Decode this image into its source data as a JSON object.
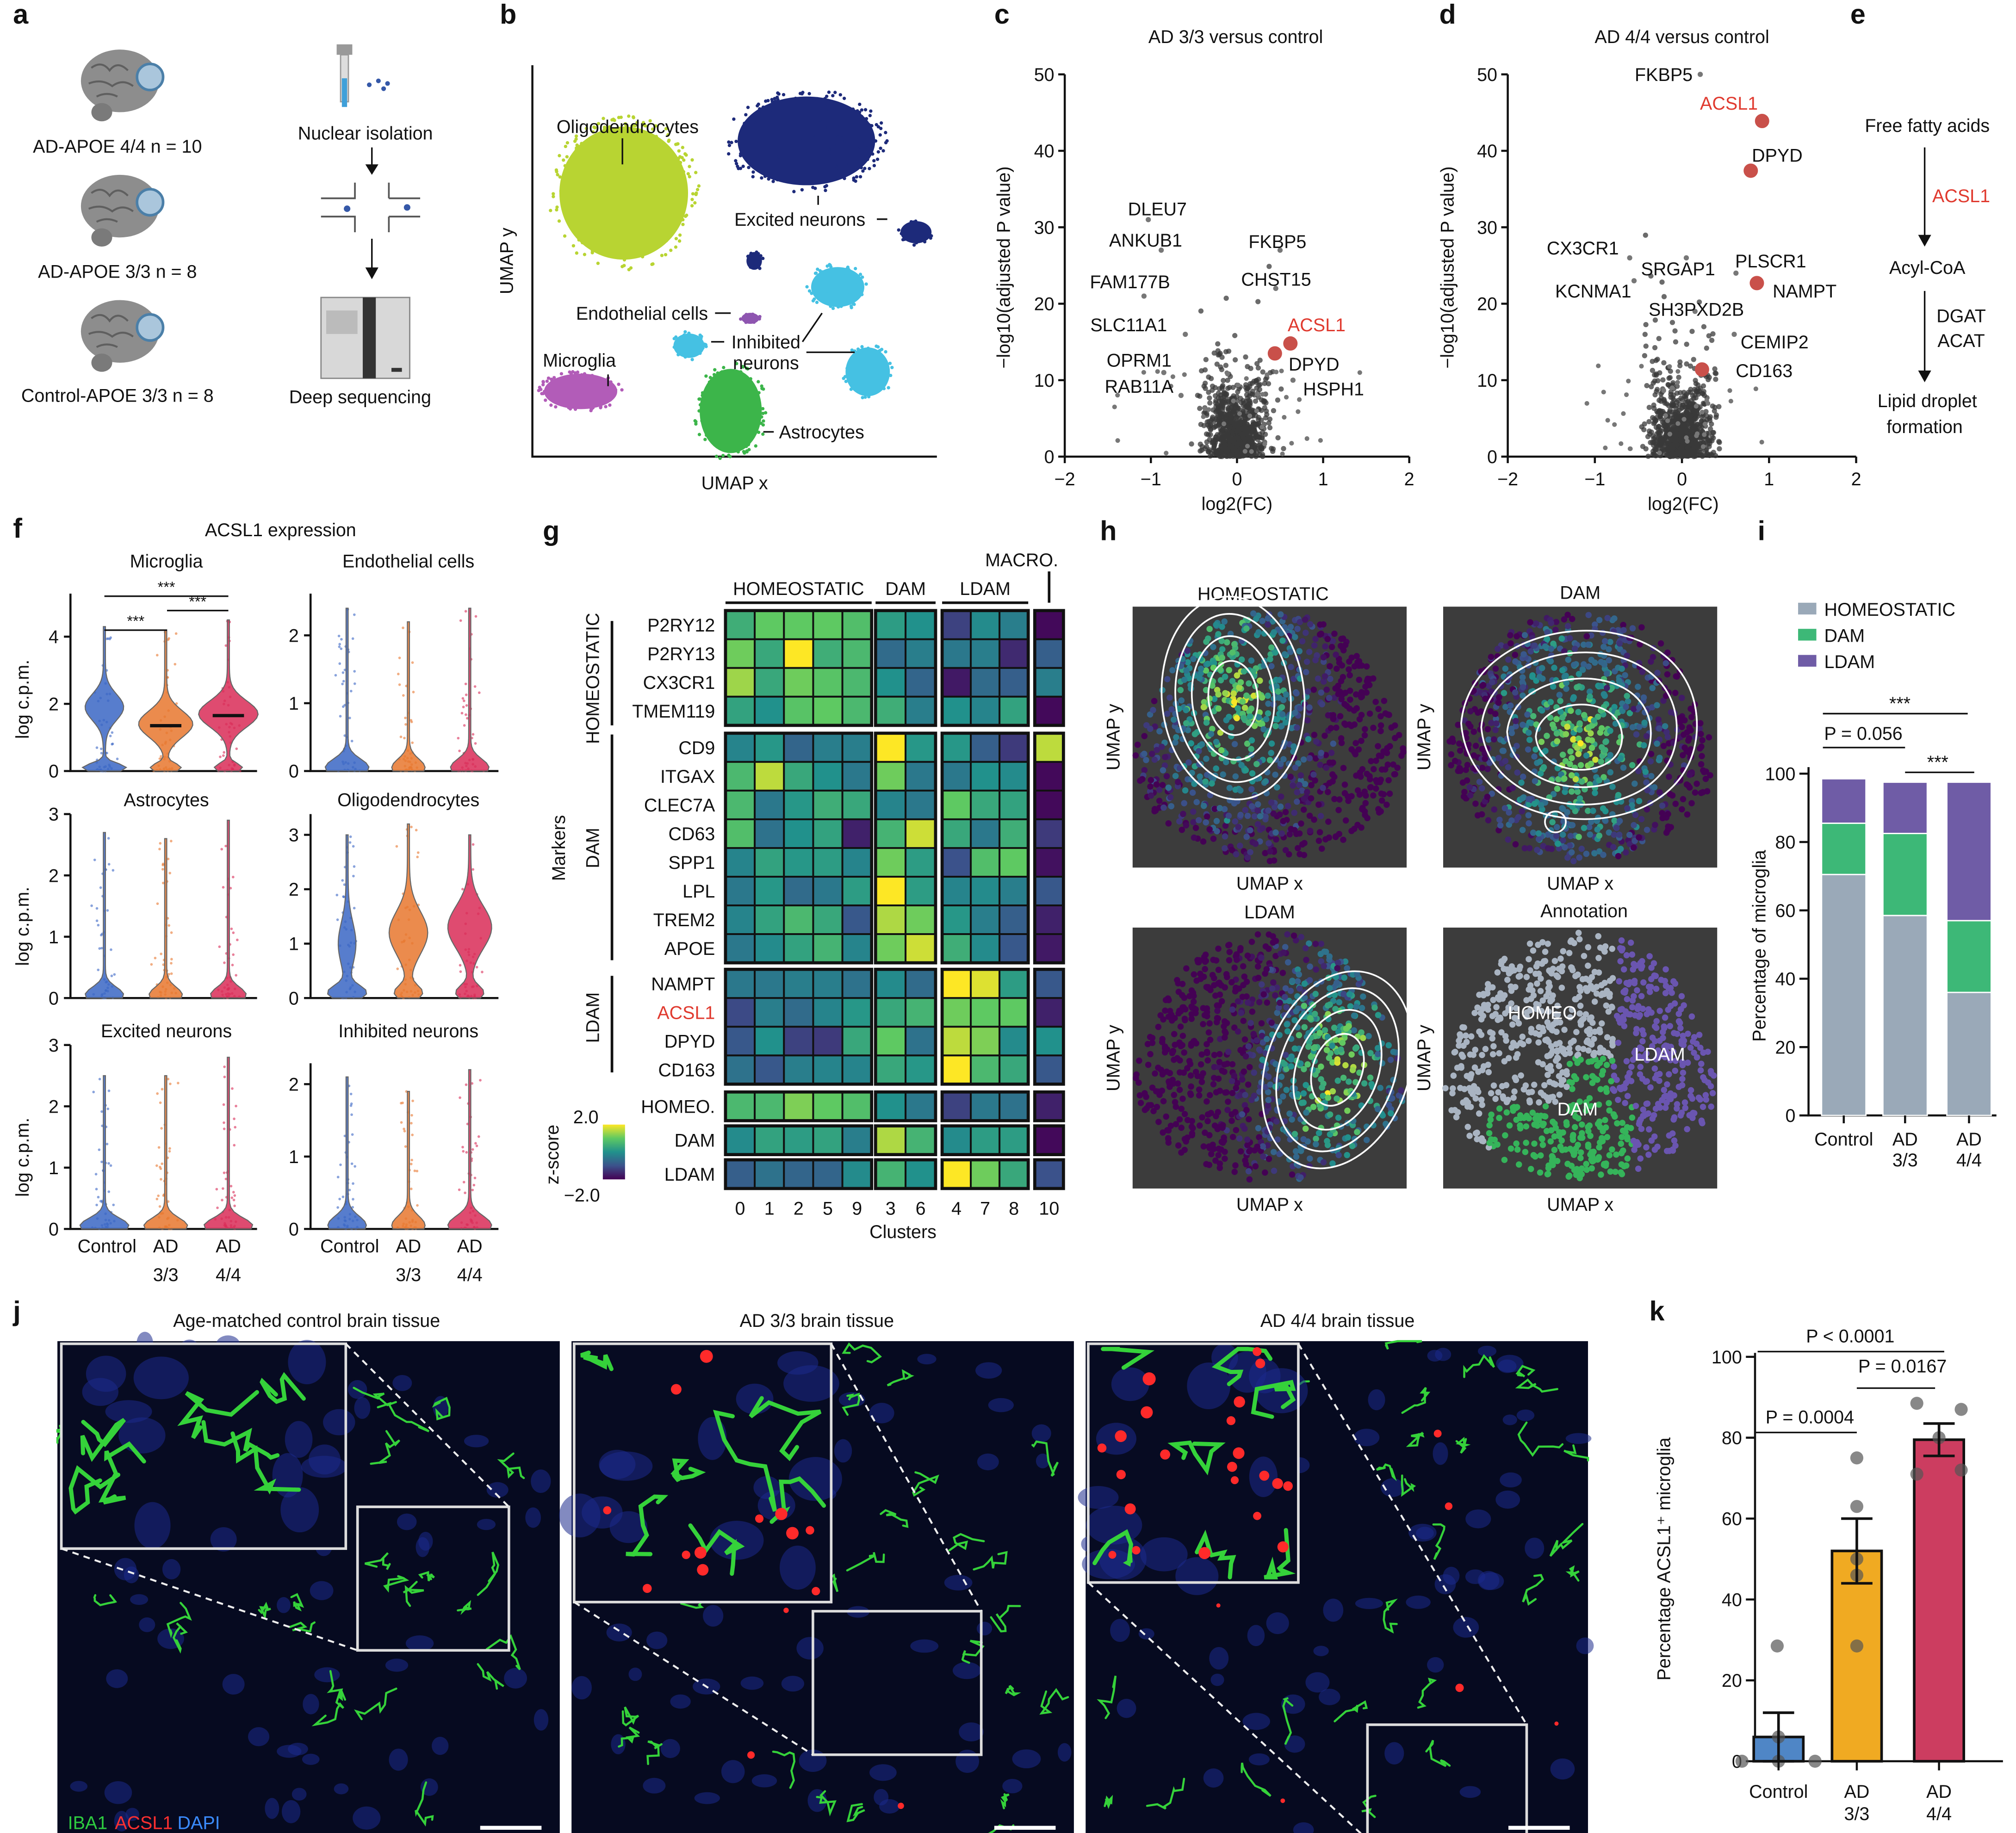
{
  "panel_letters": {
    "a": "a",
    "b": "b",
    "c": "c",
    "d": "d",
    "e": "e",
    "f": "f",
    "g": "g",
    "h": "h",
    "i": "i",
    "j": "j",
    "k": "k"
  },
  "panel_a": {
    "cohorts": [
      "AD-APOE 4/4 n = 10",
      "AD-APOE 3/3 n = 8",
      "Control-APOE 3/3 n = 8"
    ],
    "steps": [
      "Nuclear isolation",
      "Deep sequencing"
    ]
  },
  "panel_b": {
    "xlabel": "UMAP x",
    "ylabel": "UMAP y",
    "clusters": [
      {
        "name": "Oligodendrocytes",
        "color": "#b8d432"
      },
      {
        "name": "Excited neurons",
        "color": "#1d2a7a"
      },
      {
        "name": "Endothelial cells",
        "color": "#8e55b0"
      },
      {
        "name": "Inhibited",
        "name2": "neurons",
        "color": "#45c1e3"
      },
      {
        "name": "Microglia",
        "color": "#b25cb8"
      },
      {
        "name": "Astrocytes",
        "color": "#3cb54a"
      }
    ]
  },
  "panel_e": {
    "start": "Free fatty acids",
    "enzyme1": "ACSL1",
    "middle": "Acyl-CoA",
    "enzyme2a": "DGAT",
    "enzyme2b": "ACAT",
    "end1": "Lipid droplet",
    "end2": "formation",
    "highlight_color": "#e03a2f"
  },
  "panel_h": {
    "panels": [
      {
        "title": "HOMEOSTATIC",
        "xlabel": "UMAP x",
        "ylabel": "UMAP y"
      },
      {
        "title": "DAM",
        "xlabel": "UMAP x",
        "ylabel": "UMAP y"
      },
      {
        "title": "LDAM",
        "xlabel": "UMAP x",
        "ylabel": "UMAP y"
      },
      {
        "title": "Annotation",
        "xlabel": "UMAP x",
        "ylabel": "UMAP y"
      }
    ],
    "annotation_labels": [
      "HOMEO",
      "LDAM",
      "DAM"
    ],
    "annotation_colors": {
      "HOMEO": "#a9b4c2",
      "DAM": "#35b45a",
      "LDAM": "#6a55b0"
    },
    "background": "#3c3c3c"
  },
  "panel_j": {
    "titles": [
      "Age-matched control brain tissue",
      "AD 3/3 brain tissue",
      "AD 4/4 brain tissue"
    ],
    "stain_legend": [
      {
        "text": "IBA1",
        "color": "#2ecc40"
      },
      {
        "text": "ACSL1",
        "color": "#ff3030"
      },
      {
        "text": "DAPI",
        "color": "#3b8cff"
      }
    ]
  },
  "chart_data": [
    {
      "id": "c",
      "type": "scatter",
      "title": "AD 3/3 versus control",
      "xlabel": "log2(FC)",
      "ylabel": "−log10(adjusted P value)",
      "xlim": [
        -2,
        2
      ],
      "ylim": [
        0,
        50
      ],
      "xticks": [
        "−2",
        "−1",
        "0",
        "1",
        "2"
      ],
      "yticks": [
        "0",
        "10",
        "20",
        "30",
        "40",
        "50"
      ],
      "labeled_points": [
        {
          "gene": "DLEU7",
          "x": -1.03,
          "y": 31,
          "highlight": false
        },
        {
          "gene": "ANKUB1",
          "x": -0.88,
          "y": 27,
          "highlight": false
        },
        {
          "gene": "FAM177B",
          "x": -1.08,
          "y": 21,
          "highlight": false
        },
        {
          "gene": "SLC11A1",
          "x": -0.6,
          "y": 16,
          "highlight": false
        },
        {
          "gene": "OPRM1",
          "x": -0.85,
          "y": 11,
          "highlight": false
        },
        {
          "gene": "RAB11A",
          "x": -0.65,
          "y": 8,
          "highlight": false
        },
        {
          "gene": "FKBP5",
          "x": 0.5,
          "y": 27,
          "highlight": false
        },
        {
          "gene": "CHST15",
          "x": 0.45,
          "y": 22,
          "highlight": false
        },
        {
          "gene": "ACSL1",
          "x": 0.62,
          "y": 14.8,
          "highlight": true
        },
        {
          "gene": "DPYD",
          "x": 0.44,
          "y": 13.5,
          "highlight": true
        },
        {
          "gene": "HSPH1",
          "x": 0.65,
          "y": 10,
          "highlight": false
        }
      ],
      "highlight_color": "#c9504a",
      "point_color": "#333333"
    },
    {
      "id": "d",
      "type": "scatter",
      "title": "AD 4/4 versus control",
      "xlabel": "log2(FC)",
      "ylabel": "−log10(adjusted P value)",
      "xlim": [
        -2,
        2
      ],
      "ylim": [
        0,
        50
      ],
      "xticks": [
        "−2",
        "−1",
        "0",
        "1",
        "2"
      ],
      "yticks": [
        "0",
        "10",
        "20",
        "30",
        "40",
        "50"
      ],
      "labeled_points": [
        {
          "gene": "FKBP5",
          "x": 0.21,
          "y": 50,
          "highlight": false
        },
        {
          "gene": "ACSL1",
          "x": 0.92,
          "y": 43.9,
          "highlight": true
        },
        {
          "gene": "DPYD",
          "x": 0.79,
          "y": 37.4,
          "highlight": true
        },
        {
          "gene": "CX3CR1",
          "x": -0.6,
          "y": 26,
          "highlight": false
        },
        {
          "gene": "SRGAP1",
          "x": 0.05,
          "y": 26,
          "highlight": false
        },
        {
          "gene": "PLSCR1",
          "x": 0.62,
          "y": 24,
          "highlight": false
        },
        {
          "gene": "NAMPT",
          "x": 0.86,
          "y": 22.7,
          "highlight": true
        },
        {
          "gene": "KCNMA1",
          "x": -0.55,
          "y": 23,
          "highlight": false
        },
        {
          "gene": "SH3PXD2B",
          "x": 0.15,
          "y": 19,
          "highlight": false
        },
        {
          "gene": "CEMIP2",
          "x": 0.6,
          "y": 16,
          "highlight": false
        },
        {
          "gene": "CD163",
          "x": 0.23,
          "y": 11.4,
          "highlight": true
        }
      ],
      "highlight_color": "#c9504a",
      "point_color": "#333333"
    },
    {
      "id": "f",
      "type": "violin",
      "title": "ACSL1 expression",
      "ylabel": "log c.p.m.",
      "groups": [
        "Control",
        "AD 3/3",
        "AD 4/4"
      ],
      "group_colors": [
        "#3a66c4",
        "#e8772e",
        "#d92b57"
      ],
      "panels": [
        {
          "title": "Microglia",
          "yticks": [
            0,
            2,
            4
          ],
          "ylim": [
            0,
            4.4
          ],
          "max": [
            4.3,
            4.2,
            4.5
          ],
          "median": [
            null,
            1.35,
            1.65
          ],
          "significance": [
            {
              "pair": [
                "Control",
                "AD 3/3"
              ],
              "label": "***"
            },
            {
              "pair": [
                "AD 3/3",
                "AD 4/4"
              ],
              "label": "***"
            },
            {
              "pair": [
                "Control",
                "AD 4/4"
              ],
              "label": "***"
            }
          ]
        },
        {
          "title": "Endothelial cells",
          "yticks": [
            0,
            1,
            2
          ],
          "ylim": [
            0,
            2.2
          ],
          "max": [
            2.4,
            2.2,
            2.4
          ]
        },
        {
          "title": "Astrocytes",
          "yticks": [
            0,
            1,
            2,
            3
          ],
          "ylim": [
            0,
            3
          ],
          "max": [
            2.7,
            2.6,
            2.9
          ]
        },
        {
          "title": "Oligodendrocytes",
          "yticks": [
            1,
            2,
            3,
            0
          ],
          "ylim": [
            0,
            3.2
          ],
          "max": [
            3.0,
            3.2,
            3.0
          ]
        },
        {
          "title": "Excited neurons",
          "yticks": [
            0,
            1,
            2,
            3
          ],
          "ylim": [
            0,
            3
          ],
          "max": [
            2.5,
            2.5,
            2.8
          ]
        },
        {
          "title": "Inhibited neurons",
          "yticks": [
            0,
            1,
            2
          ],
          "ylim": [
            0,
            2.2
          ],
          "max": [
            2.1,
            1.9,
            2.2
          ]
        }
      ],
      "xticks": [
        {
          "l1": "Control",
          "l2": ""
        },
        {
          "l1": "AD",
          "l2": "3/3"
        },
        {
          "l1": "AD",
          "l2": "4/4"
        }
      ]
    },
    {
      "id": "g",
      "type": "heatmap",
      "xlabel": "Clusters",
      "ylabel": "Markers",
      "colorbar": {
        "label": "z-score",
        "max": "2.0",
        "min": "−2.0",
        "range": [
          -2,
          2
        ]
      },
      "column_groups": [
        {
          "name": "HOMEOSTATIC",
          "clusters": [
            "0",
            "1",
            "2",
            "5",
            "9"
          ]
        },
        {
          "name": "DAM",
          "clusters": [
            "3",
            "6"
          ]
        },
        {
          "name": "LDAM",
          "clusters": [
            "4",
            "7",
            "8"
          ]
        },
        {
          "name": "MACRO.",
          "clusters": [
            "10"
          ]
        }
      ],
      "row_groups": [
        {
          "name": "HOMEOSTATIC",
          "rows": [
            "P2RY12",
            "P2RY13",
            "CX3CR1",
            "TMEM119"
          ]
        },
        {
          "name": "DAM",
          "rows": [
            "CD9",
            "ITGAX",
            "CLEC7A",
            "CD63",
            "SPP1",
            "LPL",
            "TREM2",
            "APOE"
          ]
        },
        {
          "name": "LDAM",
          "rows": [
            "NAMPT",
            "ACSL1",
            "DPYD",
            "CD163"
          ]
        },
        {
          "name": "",
          "rows": [
            "HOMEO.",
            "DAM",
            "LDAM"
          ]
        }
      ],
      "highlight_row": "ACSL1",
      "highlight_color": "#e03a2f",
      "values": [
        [
          0.5,
          1.0,
          1.0,
          1.0,
          0.8,
          0.2,
          0.0,
          -1.2,
          -0.1,
          -0.3,
          -1.9
        ],
        [
          1.1,
          0.4,
          2.0,
          0.5,
          0.7,
          -0.6,
          -0.3,
          -0.4,
          -0.3,
          -1.5,
          -0.8
        ],
        [
          1.4,
          0.4,
          1.1,
          0.9,
          0.7,
          0.0,
          -0.7,
          -1.7,
          -0.6,
          -0.8,
          -0.3
        ],
        [
          0.3,
          0.0,
          0.9,
          1.0,
          0.7,
          0.5,
          -0.3,
          0.0,
          -0.2,
          0.3,
          -1.9
        ],
        [
          -0.2,
          0.1,
          -0.7,
          -0.3,
          -0.3,
          2.0,
          0.1,
          0.1,
          -0.8,
          -1.3,
          1.6
        ],
        [
          0.7,
          1.6,
          0.4,
          0.0,
          -0.4,
          1.1,
          -0.4,
          -0.4,
          0.0,
          -0.1,
          -1.9
        ],
        [
          0.7,
          -0.4,
          0.1,
          0.5,
          0.4,
          -0.2,
          -0.4,
          1.0,
          0.4,
          0.3,
          -1.9
        ],
        [
          0.8,
          -0.5,
          0.0,
          0.3,
          -1.6,
          0.6,
          1.7,
          0.4,
          -0.4,
          0.5,
          -1.3
        ],
        [
          -0.2,
          0.3,
          0.1,
          0.2,
          -0.2,
          1.1,
          0.2,
          -1.0,
          0.8,
          1.0,
          -1.8
        ],
        [
          -0.4,
          0.1,
          -0.6,
          -0.4,
          0.2,
          2.0,
          0.2,
          -0.2,
          -0.1,
          -0.3,
          -0.9
        ],
        [
          -0.2,
          0.3,
          0.7,
          0.4,
          -0.9,
          1.5,
          1.1,
          0.1,
          -0.3,
          -0.8,
          -1.6
        ],
        [
          -0.4,
          -0.1,
          0.3,
          0.6,
          -0.2,
          1.1,
          1.7,
          0.5,
          -0.1,
          -0.9,
          -1.7
        ],
        [
          -0.4,
          -0.4,
          -0.3,
          -0.3,
          -0.5,
          -0.1,
          -0.6,
          2.0,
          1.8,
          0.2,
          -0.9
        ],
        [
          -1.1,
          -0.3,
          -0.6,
          -0.2,
          0.1,
          0.4,
          0.6,
          1.1,
          1.0,
          1.0,
          -1.6
        ],
        [
          -0.9,
          0.0,
          -1.2,
          -1.3,
          0.4,
          1.0,
          -0.5,
          1.6,
          1.2,
          -0.1,
          0.0
        ],
        [
          -0.5,
          -0.9,
          -0.3,
          -0.2,
          -0.2,
          0.4,
          0.1,
          2.0,
          0.7,
          0.4,
          -0.9
        ],
        [
          0.7,
          0.7,
          1.2,
          1.0,
          0.8,
          0.0,
          -0.4,
          -1.2,
          -0.4,
          -0.5,
          -1.6
        ],
        [
          -0.1,
          0.3,
          0.2,
          0.3,
          -0.3,
          1.5,
          0.6,
          -0.1,
          0.2,
          0.2,
          -1.9
        ],
        [
          -0.8,
          -0.5,
          -0.7,
          -0.7,
          -0.1,
          0.6,
          0.0,
          2.0,
          1.1,
          0.4,
          -1.0
        ]
      ]
    },
    {
      "id": "i",
      "type": "bar",
      "stacked": true,
      "ylabel": "Percentage of microglia",
      "ylim": [
        0,
        100
      ],
      "yticks": [
        "0",
        "20",
        "40",
        "60",
        "80",
        "100"
      ],
      "categories": [
        {
          "l1": "Control",
          "l2": ""
        },
        {
          "l1": "AD",
          "l2": "3/3"
        },
        {
          "l1": "AD",
          "l2": "4/4"
        }
      ],
      "series": [
        {
          "name": "HOMEOSTATIC",
          "color": "#9aa9b8",
          "values": [
            70.5,
            58.5,
            36
          ]
        },
        {
          "name": "DAM",
          "color": "#3db877",
          "values": [
            15,
            24,
            21
          ]
        },
        {
          "name": "LDAM",
          "color": "#6f5ca6",
          "values": [
            13,
            15,
            40.5
          ]
        }
      ],
      "legend": "top-left",
      "annotations": [
        {
          "pair": [
            "Control",
            "AD 4/4"
          ],
          "label": "***"
        },
        {
          "pair": [
            "Control",
            "AD 3/3"
          ],
          "label": "P = 0.056"
        },
        {
          "pair": [
            "AD 3/3",
            "AD 4/4"
          ],
          "label": "***"
        }
      ]
    },
    {
      "id": "k",
      "type": "bar",
      "ylabel": "Percentage ACSL1⁺ microglia",
      "ylim": [
        0,
        100
      ],
      "yticks": [
        "0",
        "20",
        "40",
        "60",
        "80",
        "100"
      ],
      "categories": [
        {
          "l1": "Control",
          "l2": ""
        },
        {
          "l1": "AD",
          "l2": "3/3"
        },
        {
          "l1": "AD",
          "l2": "4/4"
        }
      ],
      "colors": [
        "#4f86c6",
        "#f0aa22",
        "#cc3d60"
      ],
      "values": [
        6,
        52,
        79.5
      ],
      "sem": [
        6,
        8,
        4
      ],
      "points": [
        [
          28.5,
          6,
          0,
          0,
          0
        ],
        [
          75,
          63,
          50,
          46,
          28.5
        ],
        [
          88.5,
          87,
          80,
          72,
          71
        ]
      ],
      "annotations": [
        {
          "pair": [
            "Control",
            "AD 4/4"
          ],
          "label": "P < 0.0001"
        },
        {
          "pair": [
            "AD 3/3",
            "AD 4/4"
          ],
          "label": "P = 0.0167"
        },
        {
          "pair": [
            "Control",
            "AD 3/3"
          ],
          "label": "P = 0.0004"
        }
      ]
    }
  ]
}
